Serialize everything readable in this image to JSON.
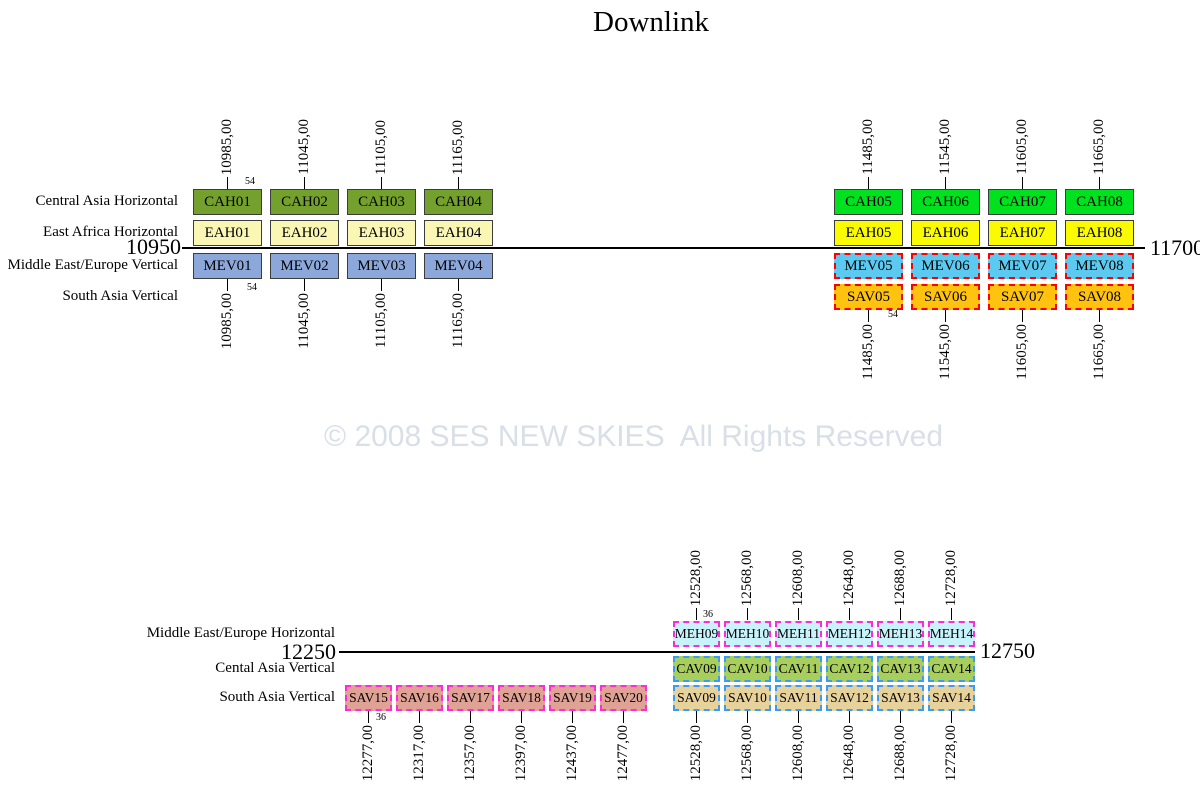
{
  "title": "Downlink",
  "watermark": "© 2008 SES NEW SKIES  All Rights Reserved",
  "top_section": {
    "row_labels": {
      "cah": "Central Asia Horizontal",
      "eah": "East Africa Horizontal",
      "mev": "Middle East/Europe Vertical",
      "sav": "South Asia Vertical"
    },
    "axis": {
      "start": "10950",
      "end": "11700"
    },
    "bandwidth_mhz": "54",
    "left_group": {
      "top_freqs": [
        "10985,00",
        "11045,00",
        "11105,00",
        "11165,00"
      ],
      "cah_boxes": [
        "CAH01",
        "CAH02",
        "CAH03",
        "CAH04"
      ],
      "eah_boxes": [
        "EAH01",
        "EAH02",
        "EAH03",
        "EAH04"
      ],
      "mev_boxes": [
        "MEV01",
        "MEV02",
        "MEV03",
        "MEV04"
      ],
      "bottom_freqs": [
        "10985,00",
        "11045,00",
        "11105,00",
        "11165,00"
      ]
    },
    "right_group": {
      "top_freqs": [
        "11485,00",
        "11545,00",
        "11605,00",
        "11665,00"
      ],
      "cah_boxes": [
        "CAH05",
        "CAH06",
        "CAH07",
        "CAH08"
      ],
      "eah_boxes": [
        "EAH05",
        "EAH06",
        "EAH07",
        "EAH08"
      ],
      "mev_boxes": [
        "MEV05",
        "MEV06",
        "MEV07",
        "MEV08"
      ],
      "sav_boxes": [
        "SAV05",
        "SAV06",
        "SAV07",
        "SAV08"
      ],
      "bottom_freqs": [
        "11485,00",
        "11545,00",
        "11605,00",
        "11665,00"
      ]
    }
  },
  "bottom_section": {
    "row_labels": {
      "meh": "Middle East/Europe Horizontal",
      "cav": "Cental Asia Vertical",
      "sav": "South Asia Vertical"
    },
    "axis": {
      "start": "12250",
      "end": "12750"
    },
    "bandwidth_mhz": "36",
    "left_group": {
      "sav_boxes": [
        "SAV15",
        "SAV16",
        "SAV17",
        "SAV18",
        "SAV19",
        "SAV20"
      ],
      "bottom_freqs": [
        "12277,00",
        "12317,00",
        "12357,00",
        "12397,00",
        "12437,00",
        "12477,00"
      ]
    },
    "right_group": {
      "top_freqs": [
        "12528,00",
        "12568,00",
        "12608,00",
        "12648,00",
        "12688,00",
        "12728,00"
      ],
      "meh_boxes": [
        "MEH09",
        "MEH10",
        "MEH11",
        "MEH12",
        "MEH13",
        "MEH14"
      ],
      "cav_boxes": [
        "CAV09",
        "CAV10",
        "CAV11",
        "CAV12",
        "CAV13",
        "CAV14"
      ],
      "sav_boxes": [
        "SAV09",
        "SAV10",
        "SAV11",
        "SAV12",
        "SAV13",
        "SAV14"
      ],
      "bottom_freqs": [
        "12528,00",
        "12568,00",
        "12608,00",
        "12648,00",
        "12688,00",
        "12728,00"
      ]
    }
  },
  "colors": {
    "cah_left_fill": "#74a12d",
    "eah_left_fill": "#faf6b4",
    "mev_left_fill": "#8ca8db",
    "cah_right_fill": "#00e120",
    "eah_right_fill": "#fbfb00",
    "mev_right_fill": "#5bc9f0",
    "sav_right_fill": "#ffc20e",
    "meh_fill": "#c9f3fb",
    "cav_fill": "#a8ce5e",
    "sav_tan_fill": "#e8d29c",
    "sav_salmon_fill": "#e0a294",
    "dashed_red": "#ff0000",
    "dashed_magenta": "#ff2bd6",
    "dashed_blue": "#3b9cf5",
    "solid_border": "#3c3c3c",
    "watermark_color": "#d9dfe7"
  }
}
